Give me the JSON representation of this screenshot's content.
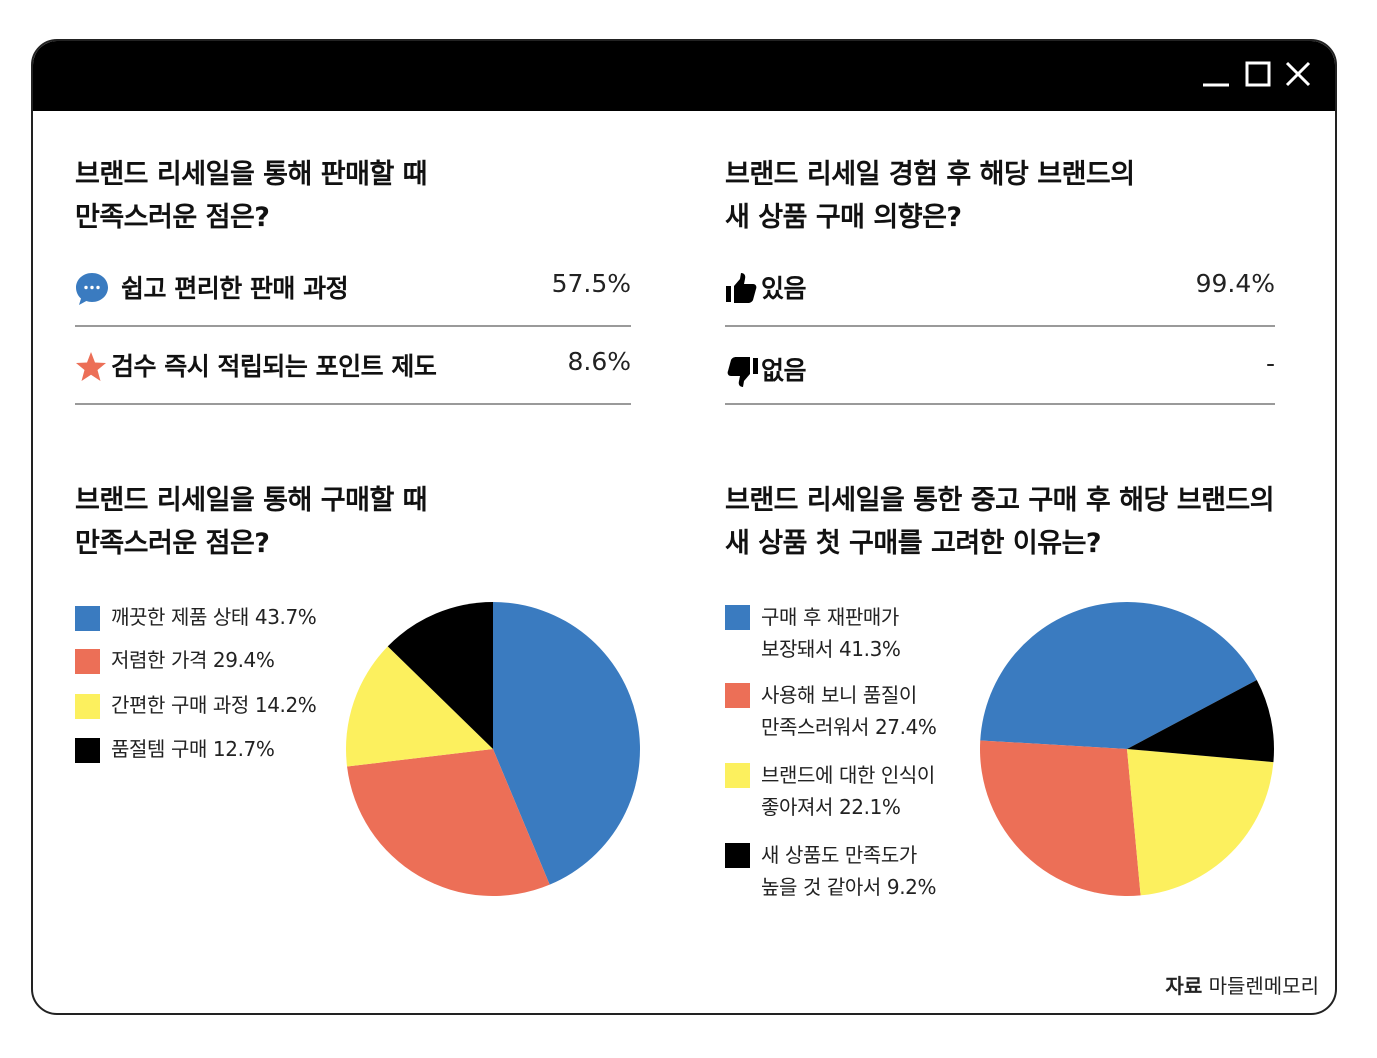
{
  "colors": {
    "blue": "#3a7bc0",
    "coral": "#ec6f57",
    "yellow": "#fcf05e",
    "black": "#000000"
  },
  "window_controls": [
    "minimize-icon",
    "maximize-icon",
    "close-icon"
  ],
  "q1": {
    "title_line1": "브랜드 리세일을 통해 판매할 때",
    "title_line2": "만족스러운 점은?",
    "rows": [
      {
        "icon": "chat-bubble-icon",
        "label": "쉽고 편리한 판매 과정",
        "value": "57.5%"
      },
      {
        "icon": "star-icon",
        "label": "검수 즉시 적립되는 포인트 제도",
        "value": "8.6%"
      }
    ]
  },
  "q2": {
    "title_line1": "브랜드 리세일 경험 후 해당 브랜드의",
    "title_line2": "새 상품 구매 의향은?",
    "rows": [
      {
        "icon": "thumbs-up-icon",
        "label": "있음",
        "value": "99.4%"
      },
      {
        "icon": "thumbs-down-icon",
        "label": "없음",
        "value": "-"
      }
    ]
  },
  "q3": {
    "title_line1": "브랜드 리세일을 통해 구매할 때",
    "title_line2": "만족스러운 점은?"
  },
  "q4": {
    "title_line1": "브랜드 리세일을 통한 중고 구매 후 해당 브랜드의",
    "title_line2": "새 상품 첫 구매를 고려한 이유는?"
  },
  "chart_data": [
    {
      "type": "pie",
      "slices": [
        {
          "label": "깨끗한 제품 상태",
          "value": 43.7,
          "display": "깨끗한 제품 상태 43.7%",
          "color": "#3a7bc0"
        },
        {
          "label": "저렴한 가격",
          "value": 29.4,
          "display": "저렴한 가격 29.4%",
          "color": "#ec6f57"
        },
        {
          "label": "간편한 구매 과정",
          "value": 14.2,
          "display": "간편한 구매 과정 14.2%",
          "color": "#fcf05e"
        },
        {
          "label": "품절템 구매",
          "value": 12.7,
          "display": "품절템 구매 12.7%",
          "color": "#000000"
        }
      ],
      "start": "12 o'clock",
      "direction": "clockwise"
    },
    {
      "type": "pie",
      "slices": [
        {
          "label": "구매 후 재판매가 보장돼서",
          "value": 41.3,
          "line1": "구매 후 재판매가",
          "line2": "보장돼서 41.3%",
          "color": "#3a7bc0"
        },
        {
          "label": "사용해 보니 품질이 만족스러워서",
          "value": 27.4,
          "line1": "사용해 보니 품질이",
          "line2": "만족스러워서 27.4%",
          "color": "#ec6f57"
        },
        {
          "label": "브랜드에 대한 인식이 좋아져서",
          "value": 22.1,
          "line1": "브랜드에 대한 인식이",
          "line2": "좋아져서 22.1%",
          "color": "#fcf05e"
        },
        {
          "label": "새 상품도 만족도가 높을 것 같아서",
          "value": 9.2,
          "line1": "새 상품도 만족도가",
          "line2": "높을 것 같아서 9.2%",
          "color": "#000000"
        }
      ],
      "start": "ordered clockwise from blue",
      "direction": "counterclockwise"
    }
  ],
  "source": {
    "label": "자료",
    "text": "마들렌메모리"
  }
}
